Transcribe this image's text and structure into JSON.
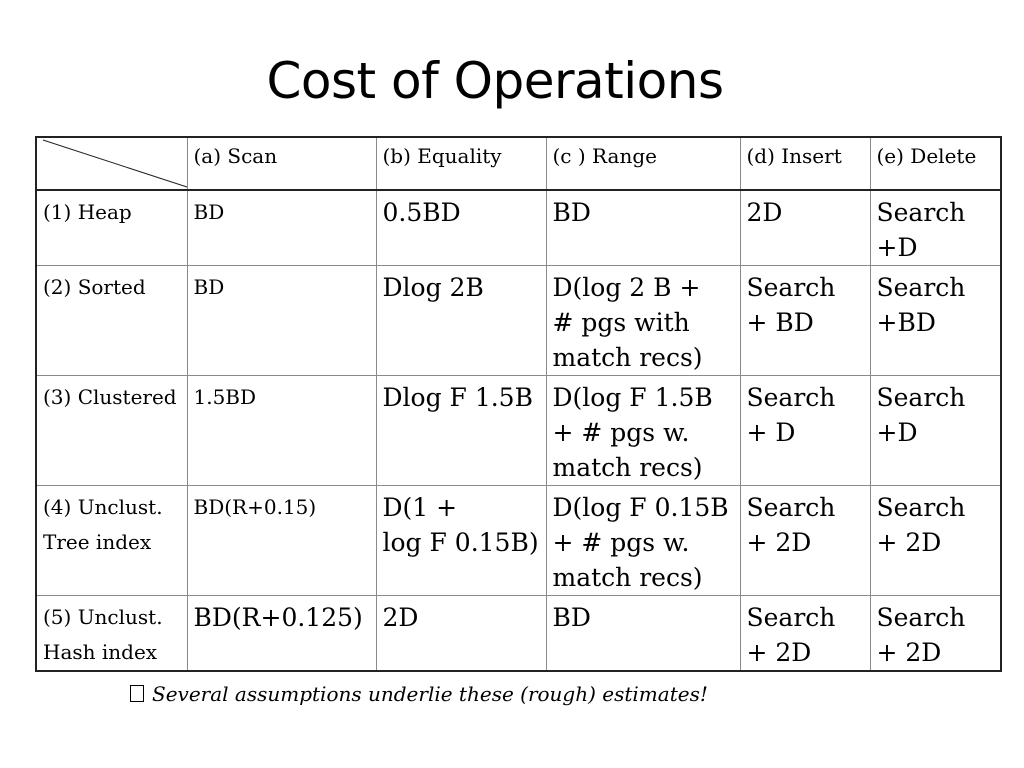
{
  "title": "Cost of Operations",
  "headers": [
    "(a) Scan",
    "(b) Equality",
    "(c ) Range",
    "(d) Insert",
    "(e) Delete"
  ],
  "rows": [
    {
      "label": "(1) Heap",
      "scan": "BD",
      "equality": [
        "0.5BD"
      ],
      "range": [
        "BD"
      ],
      "insert": [
        "2D"
      ],
      "delete": [
        "Search",
        "+D"
      ]
    },
    {
      "label": "(2) Sorted",
      "scan": "BD",
      "equality": [
        "Dlog 2B"
      ],
      "range": [
        "D(log 2 B +",
        "# pgs with",
        "match recs)"
      ],
      "insert": [
        "Search",
        "+ BD"
      ],
      "delete": [
        "Search",
        "+BD"
      ]
    },
    {
      "label": "(3) Clustered",
      "scan": "1.5BD",
      "equality": [
        "Dlog F 1.5B"
      ],
      "range": [
        "D(log F 1.5B",
        "+ # pgs w.",
        "match recs)"
      ],
      "insert": [
        "Search",
        "+ D"
      ],
      "delete": [
        "Search",
        "+D"
      ]
    },
    {
      "label": "(4) Unclust. Tree index",
      "scan": "BD(R+0.15)",
      "equality": [
        "D(1 +",
        "log F 0.15B)"
      ],
      "range": [
        "D(log F 0.15B",
        "+ # pgs w.",
        "match recs)"
      ],
      "insert": [
        "Search",
        "+ 2D"
      ],
      "delete": [
        "Search",
        "+ 2D"
      ]
    },
    {
      "label": "(5) Unclust. Hash index",
      "scan": "BD(R+0.125)",
      "equality": [
        "2D"
      ],
      "range": [
        "BD"
      ],
      "insert": [
        "Search",
        "+ 2D"
      ],
      "delete": [
        "Search",
        "+ 2D"
      ]
    }
  ],
  "note": "Several assumptions underlie these (rough) estimates!"
}
